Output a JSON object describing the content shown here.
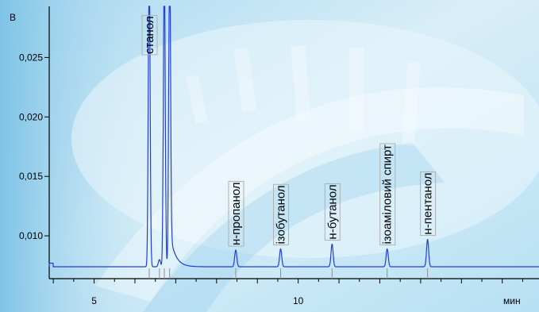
{
  "chart_data": {
    "type": "line",
    "ylabel": "В",
    "xlabel": "мин",
    "xlim": [
      3.9,
      15.9
    ],
    "ylim": [
      0.0064,
      0.0293
    ],
    "xticks": [
      5,
      10
    ],
    "yticks": [
      0.01,
      0.015,
      0.02,
      0.025
    ],
    "ytick_labels": [
      "0,010",
      "0,015",
      "0,020",
      "0,025"
    ],
    "grid": false,
    "colors": {
      "line": "#1f3fd6",
      "axis": "#000000",
      "label_border": "#b0b0b0",
      "marker": "#8f8f8f"
    },
    "baseline": 0.0074,
    "peaks": [
      {
        "label": "станол",
        "x": 6.35,
        "y": 0.0293
      },
      {
        "label": "",
        "x": 6.6,
        "y": 0.008
      },
      {
        "label": "",
        "x": 6.72,
        "y": 0.0293
      },
      {
        "label": "",
        "x": 6.85,
        "y": 0.0293
      },
      {
        "label": "н-пропанол",
        "x": 8.47,
        "y": 0.0088
      },
      {
        "label": "ізобутанол",
        "x": 9.57,
        "y": 0.0089
      },
      {
        "label": "н-бутанол",
        "x": 10.83,
        "y": 0.0093
      },
      {
        "label": "ізоаміловий спирт",
        "x": 12.18,
        "y": 0.0089
      },
      {
        "label": "н-пентанол",
        "x": 13.17,
        "y": 0.0097
      }
    ]
  }
}
